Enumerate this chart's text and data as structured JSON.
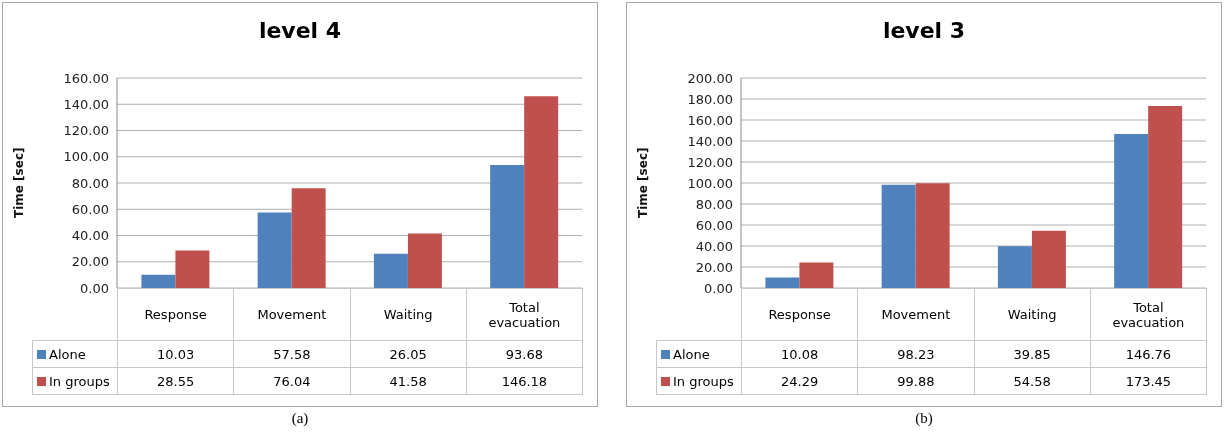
{
  "chart_data": [
    {
      "type": "bar",
      "title": "level 4",
      "ylabel": "Time [sec]",
      "categories": [
        "Response",
        "Movement",
        "Waiting",
        "Total evacuation"
      ],
      "series": [
        {
          "name": "Alone",
          "color": "#4f81bd",
          "values": [
            10.03,
            57.58,
            26.05,
            93.68
          ]
        },
        {
          "name": "In groups",
          "color": "#c0504d",
          "values": [
            28.55,
            76.04,
            41.58,
            146.18
          ]
        }
      ],
      "ylim": [
        0,
        160
      ],
      "yticks": [
        {
          "value": 0,
          "label": "0.00"
        },
        {
          "value": 20,
          "label": "20.00"
        },
        {
          "value": 40,
          "label": "40.00"
        },
        {
          "value": 60,
          "label": "60.00"
        },
        {
          "value": 80,
          "label": "80.00"
        },
        {
          "value": 100,
          "label": "100.00"
        },
        {
          "value": 120,
          "label": "120.00"
        },
        {
          "value": 140,
          "label": "140.00"
        },
        {
          "value": 160,
          "label": "160.00"
        }
      ],
      "grid": "y",
      "legend": "bottom left",
      "data_labels": true,
      "annotations": [
        "(a)"
      ]
    },
    {
      "type": "bar",
      "title": "level 3",
      "ylabel": "Time [sec]",
      "categories": [
        "Response",
        "Movement",
        "Waiting",
        "Total evacuation"
      ],
      "series": [
        {
          "name": "Alone",
          "color": "#4f81bd",
          "values": [
            10.08,
            98.23,
            39.85,
            146.76
          ]
        },
        {
          "name": "In groups",
          "color": "#c0504d",
          "values": [
            24.29,
            99.88,
            54.58,
            173.45
          ]
        }
      ],
      "ylim": [
        0,
        200
      ],
      "yticks": [
        {
          "value": 0,
          "label": "0.00"
        },
        {
          "value": 20,
          "label": "20.00"
        },
        {
          "value": 40,
          "label": "40.00"
        },
        {
          "value": 60,
          "label": "60.00"
        },
        {
          "value": 80,
          "label": "80.00"
        },
        {
          "value": 100,
          "label": "100.00"
        },
        {
          "value": 120,
          "label": "120.00"
        },
        {
          "value": 140,
          "label": "140.00"
        },
        {
          "value": 160,
          "label": "160.00"
        },
        {
          "value": 180,
          "label": "180.00"
        },
        {
          "value": 200,
          "label": "200.00"
        }
      ],
      "grid": "y",
      "legend": "bottom left",
      "data_labels": true,
      "annotations": [
        "(b)"
      ]
    }
  ]
}
